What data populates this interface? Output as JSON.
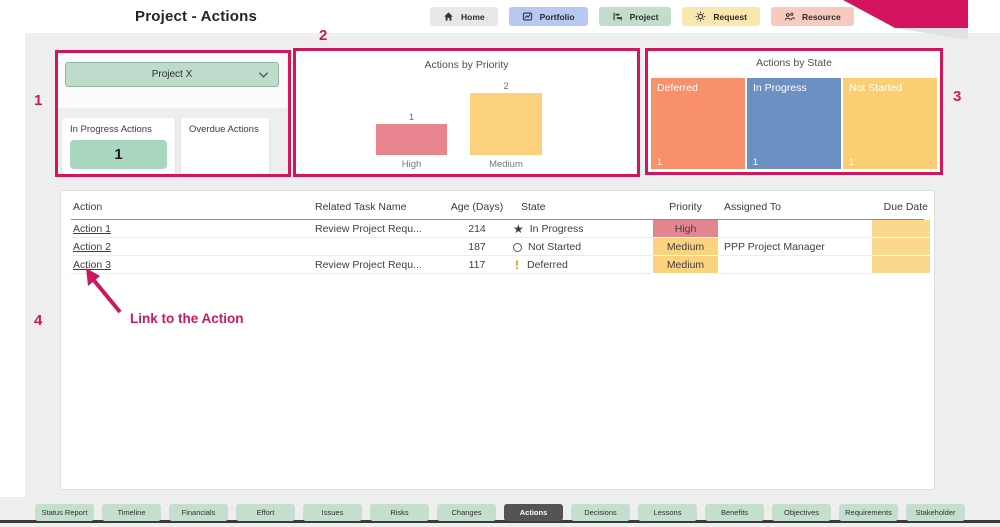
{
  "header": {
    "title": "Project - Actions",
    "ribbon_color": "#d4145f",
    "nav_items": [
      {
        "label": "Home",
        "icon": "home-icon",
        "bg": "#e8e8e8"
      },
      {
        "label": "Portfolio",
        "icon": "portfolio-icon",
        "bg": "#b7c8f1"
      },
      {
        "label": "Project",
        "icon": "project-icon",
        "bg": "#c2ddcb"
      },
      {
        "label": "Request",
        "icon": "request-icon",
        "bg": "#f9e7ae"
      },
      {
        "label": "Resource",
        "icon": "resource-icon",
        "bg": "#f7cabf"
      }
    ]
  },
  "annotations": {
    "color": "#d0175c",
    "marker_1": "1",
    "marker_2": "2",
    "marker_3": "3",
    "marker_4": "4",
    "link_note": "Link to the Action"
  },
  "filter_panel": {
    "project_selector": {
      "value": "Project X"
    },
    "kpi_cards": [
      {
        "label": "In Progress Actions",
        "value": "1",
        "value_bg": "#a9d6bf"
      },
      {
        "label": "Overdue Actions",
        "value": "",
        "value_bg": ""
      }
    ]
  },
  "chart_data": [
    {
      "type": "bar",
      "title": "Actions by Priority",
      "categories": [
        "High",
        "Medium"
      ],
      "values": [
        1,
        2
      ],
      "colors": [
        "#e9858e",
        "#fbd17e"
      ],
      "ylim": [
        0,
        2
      ],
      "data_labels": true,
      "grid": false,
      "legend": false
    },
    {
      "type": "treemap",
      "title": "Actions by State",
      "categories": [
        "Deferred",
        "In Progress",
        "Not Started"
      ],
      "values": [
        1,
        1,
        1
      ],
      "colors": [
        "#f7906b",
        "#6d90c3",
        "#fbce74"
      ]
    }
  ],
  "table": {
    "columns": [
      "Action",
      "Related Task Name",
      "Age (Days)",
      "State",
      "Priority",
      "Assigned To",
      "Due Date"
    ],
    "priority_colors": {
      "High": "#e5858f",
      "Medium": "#fbd37e"
    },
    "due_date_bg": "#fad98f",
    "rows": [
      {
        "action": "Action 1",
        "related_task": "Review Project Requ...",
        "age": "214",
        "state": "In Progress",
        "state_icon": "star",
        "priority": "High",
        "assigned_to": "",
        "due_date": ""
      },
      {
        "action": "Action 2",
        "related_task": "",
        "age": "187",
        "state": "Not Started",
        "state_icon": "circle",
        "priority": "Medium",
        "assigned_to": "PPP Project Manager",
        "due_date": ""
      },
      {
        "action": "Action 3",
        "related_task": "Review Project Requ...",
        "age": "117",
        "state": "Deferred",
        "state_icon": "exclamation",
        "priority": "Medium",
        "assigned_to": "",
        "due_date": ""
      }
    ]
  },
  "bottom_tabs": {
    "tab_bg": "#c5dfcf",
    "active_bg": "#555354",
    "active": "Actions",
    "items": [
      "Status Report",
      "Timeline",
      "Financials",
      "Effort",
      "Issues",
      "Risks",
      "Changes",
      "Actions",
      "Decisions",
      "Lessons",
      "Benefits",
      "Objectives",
      "Requirements",
      "Stakeholder"
    ]
  }
}
